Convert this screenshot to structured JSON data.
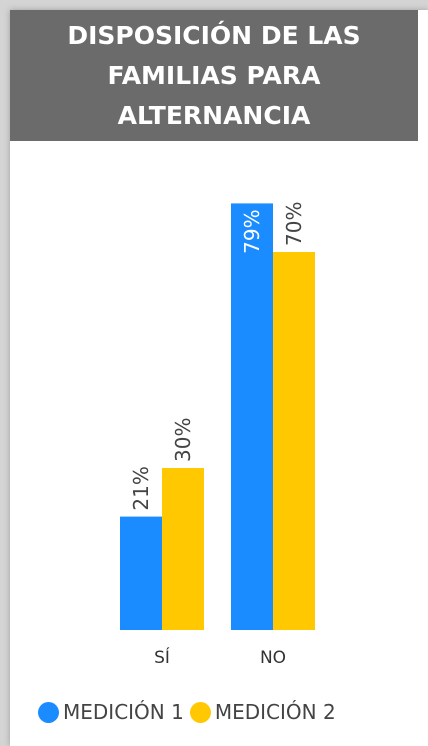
{
  "chart_data": {
    "type": "bar",
    "title": "DISPOSICIÓN DE LAS FAMILIAS PARA ALTERNANCIA",
    "categories": [
      "SÍ",
      "NO"
    ],
    "series": [
      {
        "name": "MEDICIÓN 1",
        "values": [
          21,
          79
        ],
        "labels": [
          "21%",
          "79%"
        ],
        "color": "#1a8cff"
      },
      {
        "name": "MEDICIÓN 2",
        "values": [
          30,
          70
        ],
        "labels": [
          "30%",
          "70%"
        ],
        "color": "#ffc800"
      }
    ],
    "ylim": [
      0,
      100
    ],
    "grid": false,
    "legend": "bottom"
  }
}
